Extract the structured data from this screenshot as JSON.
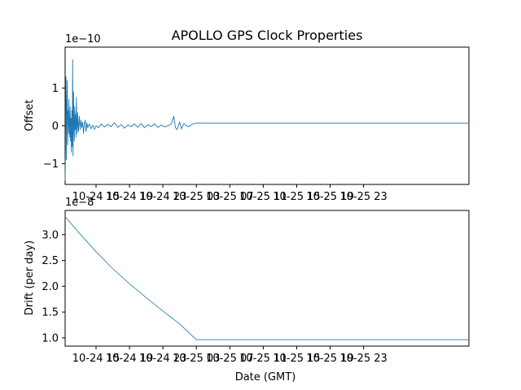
{
  "figure": {
    "title": "APOLLO GPS Clock Properties"
  },
  "chart_data": [
    {
      "type": "line",
      "ylabel": "Offset",
      "xlabel": "",
      "y_scale_label": "1e−10",
      "yticks": [
        "−1",
        "0",
        "1"
      ],
      "ytick_values": [
        -1,
        0,
        1
      ],
      "ylim": [
        -1.55,
        2.08
      ],
      "xlim_hours": [
        11.3,
        59.6
      ],
      "xticks": [
        "10-24 15",
        "10-24 19",
        "10-24 23",
        "10-25 03",
        "10-25 07",
        "10-25 11",
        "10-25 15",
        "10-25 19",
        "10-25 23"
      ],
      "xtick_hours": [
        15,
        19,
        23,
        27,
        31,
        35,
        39,
        43,
        47
      ],
      "series": [
        {
          "color": "#1f77b4",
          "note_hours": "x values are hours since 10-24 00 GMT",
          "points": [
            [
              11.3,
              -1.45
            ],
            [
              11.35,
              -0.6
            ],
            [
              11.4,
              1.3
            ],
            [
              11.45,
              -0.9
            ],
            [
              11.5,
              0.6
            ],
            [
              11.55,
              1.2
            ],
            [
              11.6,
              -0.5
            ],
            [
              11.65,
              0.4
            ],
            [
              11.7,
              -0.2
            ],
            [
              11.75,
              0.7
            ],
            [
              11.8,
              0.1
            ],
            [
              11.85,
              -0.3
            ],
            [
              11.9,
              0.5
            ],
            [
              11.95,
              -0.4
            ],
            [
              12.0,
              0.2
            ],
            [
              12.05,
              -0.7
            ],
            [
              12.1,
              0.4
            ],
            [
              12.15,
              -0.55
            ],
            [
              12.2,
              1.75
            ],
            [
              12.25,
              -0.8
            ],
            [
              12.3,
              0.9
            ],
            [
              12.35,
              0.1
            ],
            [
              12.4,
              -0.4
            ],
            [
              12.45,
              0.5
            ],
            [
              12.5,
              -0.1
            ],
            [
              12.55,
              0.3
            ],
            [
              12.6,
              -0.3
            ],
            [
              12.65,
              0.75
            ],
            [
              12.7,
              0.0
            ],
            [
              12.75,
              -0.2
            ],
            [
              12.8,
              0.35
            ],
            [
              12.9,
              -0.15
            ],
            [
              13.0,
              0.25
            ],
            [
              13.1,
              -0.1
            ],
            [
              13.2,
              0.15
            ],
            [
              13.3,
              -0.05
            ],
            [
              13.4,
              0.1
            ],
            [
              13.5,
              -0.2
            ],
            [
              13.6,
              0.05
            ],
            [
              13.7,
              0.15
            ],
            [
              13.8,
              -0.15
            ],
            [
              13.9,
              0.08
            ],
            [
              14.0,
              -0.05
            ],
            [
              14.2,
              0.05
            ],
            [
              14.4,
              -0.08
            ],
            [
              14.6,
              0.02
            ],
            [
              14.8,
              -0.1
            ],
            [
              15.0,
              0.0
            ],
            [
              15.3,
              -0.05
            ],
            [
              15.6,
              0.05
            ],
            [
              16.0,
              -0.03
            ],
            [
              16.4,
              0.04
            ],
            [
              16.8,
              -0.02
            ],
            [
              17.2,
              0.08
            ],
            [
              17.6,
              -0.04
            ],
            [
              18.0,
              0.03
            ],
            [
              18.4,
              -0.06
            ],
            [
              18.8,
              0.02
            ],
            [
              19.2,
              -0.02
            ],
            [
              19.6,
              0.05
            ],
            [
              20.0,
              -0.04
            ],
            [
              20.4,
              0.06
            ],
            [
              20.8,
              -0.05
            ],
            [
              21.2,
              0.03
            ],
            [
              21.6,
              -0.02
            ],
            [
              22.0,
              0.05
            ],
            [
              22.4,
              -0.04
            ],
            [
              22.8,
              0.02
            ],
            [
              23.2,
              -0.03
            ],
            [
              23.6,
              0.0
            ],
            [
              24.0,
              0.05
            ],
            [
              24.3,
              0.25
            ],
            [
              24.5,
              -0.05
            ],
            [
              24.7,
              -0.1
            ],
            [
              25.0,
              0.1
            ],
            [
              25.2,
              -0.08
            ],
            [
              25.5,
              0.06
            ],
            [
              25.8,
              0.0
            ],
            [
              26.1,
              -0.02
            ],
            [
              26.5,
              0.04
            ],
            [
              27.0,
              0.07
            ],
            [
              59.6,
              0.07
            ]
          ]
        }
      ]
    },
    {
      "type": "line",
      "ylabel": "Drift (per day)",
      "xlabel": "Date (GMT)",
      "y_scale_label": "1e−8",
      "yticks": [
        "1.0",
        "1.5",
        "2.0",
        "2.5",
        "3.0"
      ],
      "ytick_values": [
        1.0,
        1.5,
        2.0,
        2.5,
        3.0
      ],
      "ylim": [
        0.84,
        3.47
      ],
      "xlim_hours": [
        11.3,
        59.6
      ],
      "xticks": [
        "10-24 15",
        "10-24 19",
        "10-24 23",
        "10-25 03",
        "10-25 07",
        "10-25 11",
        "10-25 15",
        "10-25 19",
        "10-25 23"
      ],
      "xtick_hours": [
        15,
        19,
        23,
        27,
        31,
        35,
        39,
        43,
        47
      ],
      "series": [
        {
          "color": "#1f77b4",
          "points": [
            [
              11.3,
              3.35
            ],
            [
              13.0,
              3.03
            ],
            [
              15.0,
              2.67
            ],
            [
              17.0,
              2.34
            ],
            [
              19.0,
              2.05
            ],
            [
              21.0,
              1.78
            ],
            [
              23.0,
              1.52
            ],
            [
              25.0,
              1.27
            ],
            [
              27.0,
              0.965
            ],
            [
              59.6,
              0.965
            ]
          ]
        }
      ]
    }
  ]
}
